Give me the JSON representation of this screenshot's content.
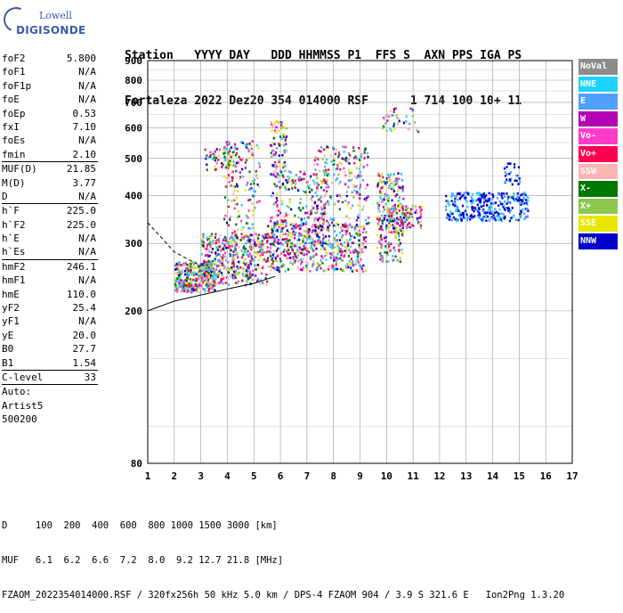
{
  "logo": {
    "line1": "Lowell",
    "line2": "DIGISONDE"
  },
  "header": {
    "line1": "Station   YYYY DAY   DDD HHMMSS P1  FFS S  AXN PPS IGA PS",
    "line2": "Fortaleza 2022 Dez20 354 014000 RSF      1 714 100 10+ 11"
  },
  "params": [
    {
      "k": "foF2",
      "v": "5.800"
    },
    {
      "k": "foF1",
      "v": "N/A"
    },
    {
      "k": "foF1p",
      "v": "N/A"
    },
    {
      "k": "foE",
      "v": "N/A"
    },
    {
      "k": "foEp",
      "v": "0.53"
    },
    {
      "k": "fxI",
      "v": "7.10"
    },
    {
      "k": "foEs",
      "v": "N/A"
    },
    {
      "k": "fmin",
      "v": "2.10"
    },
    {
      "k": "MUF(D)",
      "v": "21.85",
      "sep": true
    },
    {
      "k": "M(D)",
      "v": "3.77"
    },
    {
      "k": "D",
      "v": "N/A"
    },
    {
      "k": "h`F",
      "v": "225.0",
      "sep": true
    },
    {
      "k": "h`F2",
      "v": "225.0"
    },
    {
      "k": "h`E",
      "v": "N/A"
    },
    {
      "k": "h`Es",
      "v": "N/A"
    },
    {
      "k": "hmF2",
      "v": "246.1",
      "sep": true
    },
    {
      "k": "hmF1",
      "v": "N/A"
    },
    {
      "k": "hmE",
      "v": "110.0"
    },
    {
      "k": "yF2",
      "v": "25.4"
    },
    {
      "k": "yF1",
      "v": "N/A"
    },
    {
      "k": "yE",
      "v": "20.0"
    },
    {
      "k": "B0",
      "v": "27.7"
    },
    {
      "k": "B1",
      "v": "1.54"
    },
    {
      "k": "C-level",
      "v": "33",
      "sep": true
    },
    {
      "k": "Auto:",
      "v": "",
      "sep": true
    },
    {
      "k": "Artist5",
      "v": ""
    },
    {
      "k": "500200",
      "v": ""
    }
  ],
  "legend": [
    {
      "label": "NoVal",
      "color": "#8c8c8c"
    },
    {
      "label": "NNE",
      "color": "#1ed2ff"
    },
    {
      "label": "E",
      "color": "#50a0ff"
    },
    {
      "label": "W",
      "color": "#b400b4"
    },
    {
      "label": "Vo-",
      "color": "#ff3cc8"
    },
    {
      "label": "Vo+",
      "color": "#ff0050"
    },
    {
      "label": "SSW",
      "color": "#ffb4b4"
    },
    {
      "label": "X-",
      "color": "#007800"
    },
    {
      "label": "X+",
      "color": "#8cc850"
    },
    {
      "label": "SSE",
      "color": "#e6e600"
    },
    {
      "label": "NNW",
      "color": "#0000c8"
    }
  ],
  "bottom": {
    "line1": "D     100  200  400  600  800 1000 1500 3000 [km]",
    "line2": "MUF   6.1  6.2  6.6  7.2  8.0  9.2 12.7 21.8 [MHz]",
    "line3": "FZAOM_2022354014000.RSF / 320fx256h 50 kHz 5.0 km / DPS-4 FZAOM 904 / 3.9 S 321.6 E   Ion2Png 1.3.20"
  },
  "chart_data": {
    "type": "scatter",
    "title": "",
    "xlabel": "",
    "ylabel": "",
    "xlim": [
      1,
      17
    ],
    "ylim": [
      80,
      900
    ],
    "y_scale": "log",
    "xticks": [
      1,
      2,
      3,
      4,
      5,
      6,
      7,
      8,
      9,
      10,
      11,
      12,
      13,
      14,
      15,
      16,
      17
    ],
    "yticks": [
      80,
      200,
      300,
      400,
      500,
      600,
      700,
      800,
      900
    ],
    "grid": true,
    "traces": [
      {
        "name": "dashed",
        "style": "dashed",
        "x": [
          1,
          2.0,
          3.0
        ],
        "y": [
          340,
          285,
          262
        ]
      },
      {
        "name": "solid",
        "style": "solid",
        "x": [
          1,
          2.0,
          3.0,
          4.0,
          5.0,
          5.8
        ],
        "y": [
          200,
          212,
          220,
          228,
          236,
          246
        ]
      }
    ],
    "clusters": [
      {
        "x": [
          2.0,
          3.5
        ],
        "y": [
          225,
          270
        ],
        "n": 350
      },
      {
        "x": [
          3.0,
          5.5
        ],
        "y": [
          235,
          320
        ],
        "n": 450
      },
      {
        "x": [
          5.5,
          9.2
        ],
        "y": [
          255,
          340
        ],
        "n": 520
      },
      {
        "x": [
          3.8,
          5.2
        ],
        "y": [
          300,
          560
        ],
        "n": 160
      },
      {
        "x": [
          3.1,
          4.6
        ],
        "y": [
          470,
          540
        ],
        "n": 60
      },
      {
        "x": [
          5.6,
          6.2
        ],
        "y": [
          300,
          630
        ],
        "n": 160
      },
      {
        "x": [
          6.2,
          7.8
        ],
        "y": [
          290,
          470
        ],
        "n": 180
      },
      {
        "x": [
          7.2,
          9.3
        ],
        "y": [
          330,
          540
        ],
        "n": 220
      },
      {
        "x": [
          9.6,
          10.6
        ],
        "y": [
          270,
          460
        ],
        "n": 240
      },
      {
        "x": [
          10.0,
          11.3
        ],
        "y": [
          330,
          380
        ],
        "n": 120
      },
      {
        "x": [
          9.8,
          11.2
        ],
        "y": [
          590,
          680
        ],
        "n": 40
      },
      {
        "x": [
          12.2,
          15.3
        ],
        "y": [
          345,
          410
        ],
        "n": 320
      },
      {
        "x": [
          14.3,
          15.0
        ],
        "y": [
          430,
          490
        ],
        "n": 30
      }
    ]
  }
}
